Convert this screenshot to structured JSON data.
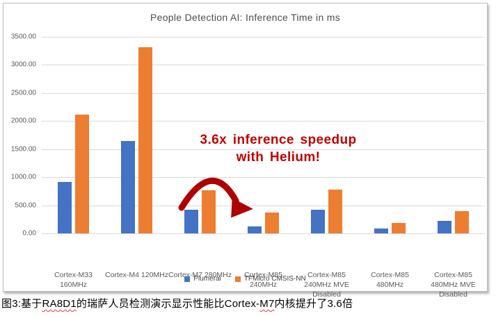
{
  "chart_data": {
    "type": "bar",
    "title": "People Detection AI: Inference Time in ms",
    "categories": [
      "Cortex-M33 160MHz",
      "Cortex-M4 120MHz",
      "Cortex-M7 280MHz",
      "Cortex-M85 240MHz",
      "Cortex-M85 240MHz MVE Disabled",
      "Cortex-M85 480MHz",
      "Cortex-M85 480MHz MVE Disabled"
    ],
    "series": [
      {
        "name": "Plumerai",
        "color": "#4472C4",
        "values": [
          920,
          1650,
          425,
          120,
          425,
          85,
          220
        ]
      },
      {
        "name": "TFMicro CMSIS-NN",
        "color": "#ED7D31",
        "values": [
          2120,
          3320,
          765,
          370,
          775,
          185,
          400
        ]
      }
    ],
    "ylim": [
      0,
      3500
    ],
    "ytick_step": 500,
    "ytick_labels": [
      "3500.00",
      "3000.00",
      "2500.00",
      "2000.00",
      "1500.00",
      "1000.00",
      "500.00",
      "0.00"
    ],
    "xlabel": "",
    "ylabel": "",
    "grid": true,
    "legend_position": "bottom",
    "annotation": {
      "line1": "3.6x inference speedup",
      "line2": "with Helium!",
      "text_color": "#C00000",
      "arrow_color": "#AE0000"
    },
    "colors": {
      "gridline": "#d9d9d9",
      "axis_text": "#595959",
      "title_text": "#4d4d4d",
      "frame_border": "#bdbdbd"
    }
  },
  "caption": {
    "segments": [
      {
        "text": "图3:基于",
        "wavy": false
      },
      {
        "text": "RA8D1",
        "wavy": true
      },
      {
        "text": "的瑞萨人员检测演示显示性能比Cortex-",
        "wavy": false
      },
      {
        "text": "M7",
        "wavy": true
      },
      {
        "text": "内核提升了3.6倍",
        "wavy": false
      }
    ]
  }
}
